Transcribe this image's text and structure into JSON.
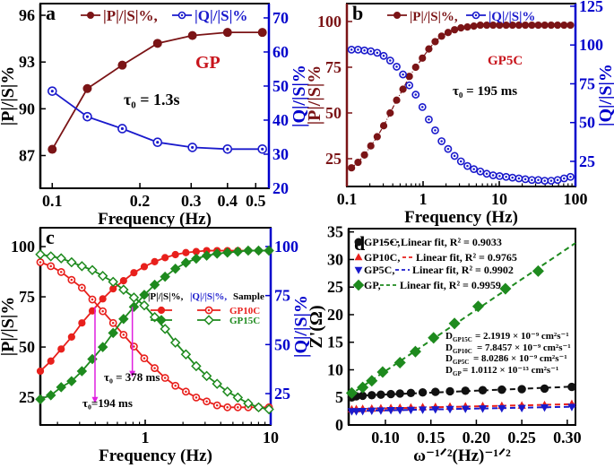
{
  "chart_data": [
    {
      "panel": "a",
      "type": "line",
      "xlabel": "Frequency (Hz)",
      "ylabel": "|P|/|S|%",
      "y2label": "|Q|/|S|%",
      "xscale": "log",
      "xlim": [
        0.091,
        0.555
      ],
      "ylim": [
        84.9,
        96.75
      ],
      "y2lim": [
        20,
        74.2
      ],
      "xticks": [
        "0.1",
        "0.2",
        "0.3",
        "0.4",
        "0.5"
      ],
      "yticks": [
        "87",
        "90",
        "93",
        "96"
      ],
      "y2ticks": [
        "20",
        "30",
        "40",
        "50",
        "60",
        "70"
      ],
      "colors": {
        "left_axis": "#000000",
        "right_axis": "#0000cc"
      },
      "legend": [
        "|P|/|S|%,",
        "|Q|/|S|%"
      ],
      "annotations": {
        "sample": "GP",
        "tau": "τ₀ = 1.3s"
      },
      "series": [
        {
          "name": "|P|/|S|%",
          "axis": "left",
          "color": "#7b1416",
          "marker": "circle",
          "line": "solid",
          "x": [
            0.1,
            0.132,
            0.174,
            0.23,
            0.303,
            0.4,
            0.527
          ],
          "y": [
            87.4,
            91.3,
            92.8,
            94.2,
            94.7,
            94.9,
            94.9
          ]
        },
        {
          "name": "|Q|/|S|%",
          "axis": "right",
          "color": "#1a1acc",
          "marker": "circle-open",
          "line": "solid",
          "x": [
            0.1,
            0.132,
            0.174,
            0.23,
            0.303,
            0.4,
            0.527
          ],
          "y": [
            48.5,
            41,
            37.5,
            33.5,
            32,
            31.5,
            31.5
          ]
        }
      ]
    },
    {
      "panel": "b",
      "type": "line",
      "xlabel": "Frequency (Hz)",
      "ylabel": "|P|/|S|%",
      "y2label": "|Q|/|S|%",
      "xscale": "log",
      "xlim": [
        0.1,
        100
      ],
      "ylim": [
        9.8,
        109.8
      ],
      "y2lim": [
        8.8,
        126.7
      ],
      "xticks": [
        "0.1",
        "1",
        "10",
        "100"
      ],
      "yticks": [
        "25",
        "50",
        "75",
        "100"
      ],
      "y2ticks": [
        "25",
        "50",
        "75",
        "100",
        "125"
      ],
      "colors": {
        "left_axis": "#7b1416",
        "right_axis": "#0000cc"
      },
      "legend": [
        "|P|/|S|%,",
        "|Q|/|S|%"
      ],
      "annotations": {
        "sample": "GP5C",
        "tau": "τ₀ = 195 ms"
      },
      "series": [
        {
          "name": "|P|/|S|%",
          "axis": "left",
          "color": "#7b1416",
          "marker": "circle",
          "line": "dashdot",
          "x": [
            0.115,
            0.14,
            0.17,
            0.206,
            0.25,
            0.304,
            0.37,
            0.45,
            0.545,
            0.66,
            0.8,
            0.98,
            1.19,
            1.44,
            1.75,
            2.13,
            2.59,
            3.14,
            3.82,
            4.64,
            5.64,
            6.85,
            8.3,
            10.1,
            12.3,
            14.9,
            18.1,
            22,
            26.8,
            32.5,
            39.5,
            48,
            58.3,
            70.9,
            86.1
          ],
          "y": [
            20,
            23,
            27,
            32,
            37,
            43,
            50,
            57,
            63,
            70,
            75,
            80,
            85,
            89,
            92,
            94,
            95.5,
            96.5,
            97,
            97.5,
            98,
            98,
            98,
            98,
            98,
            98,
            98,
            98,
            98,
            98,
            98,
            98,
            98,
            98,
            98
          ]
        },
        {
          "name": "|Q|/|S|%",
          "axis": "right",
          "color": "#1a1acc",
          "marker": "circle-open",
          "line": "none",
          "x": [
            0.115,
            0.14,
            0.17,
            0.206,
            0.25,
            0.304,
            0.37,
            0.45,
            0.545,
            0.66,
            0.8,
            0.98,
            1.19,
            1.44,
            1.75,
            2.13,
            2.59,
            3.14,
            3.82,
            4.64,
            5.64,
            6.85,
            8.3,
            10.1,
            12.3,
            14.9,
            18.1,
            22,
            26.8,
            32.5,
            39.5,
            48,
            58.3,
            70.9,
            86.1
          ],
          "y": [
            97,
            97,
            96.5,
            96,
            95,
            93,
            90,
            86,
            81,
            74,
            68,
            60,
            52,
            45,
            38,
            33,
            28.5,
            25,
            22,
            20,
            18.5,
            17,
            16,
            15.5,
            15,
            14.5,
            14,
            13.5,
            13,
            13,
            12.5,
            12.5,
            13,
            14,
            15
          ]
        }
      ]
    },
    {
      "panel": "c",
      "type": "line",
      "xlabel": "Frequency (Hz)",
      "ylabel": "|P|/|S|%",
      "y2label": "|Q|/|S|%",
      "xscale": "log",
      "xlim": [
        0.146,
        10
      ],
      "ylim": [
        11.2,
        109.4
      ],
      "y2lim": [
        9,
        109.6
      ],
      "xticks": [
        "1",
        "10"
      ],
      "yticks": [
        "25",
        "50",
        "75",
        "100"
      ],
      "y2ticks": [
        "25",
        "50",
        "75",
        "100"
      ],
      "colors": {
        "left_axis": "#000000",
        "right_axis": "#0000cc"
      },
      "legend": {
        "header": [
          "|P|/|S|%,",
          "|Q|/|S|%,",
          "Sample"
        ],
        "samples": [
          "GP10C",
          "GP15C"
        ]
      },
      "annotations": {
        "tau1": "τ₀ = 378 ms",
        "tau2": "τ₀=194 ms"
      },
      "arrows": [
        {
          "x": 0.398,
          "y_from": 70,
          "y_to": 22,
          "color": "#e020e0"
        },
        {
          "x": 0.79,
          "y_from": 70,
          "y_to": 35,
          "color": "#e020e0"
        }
      ],
      "series": [
        {
          "name": "GP10C |P|/|S|%",
          "axis": "left",
          "color": "#e8201c",
          "marker": "circle",
          "line": "solid",
          "x": [
            0.146,
            0.177,
            0.214,
            0.259,
            0.313,
            0.379,
            0.459,
            0.555,
            0.672,
            0.813,
            0.983,
            1.19,
            1.44,
            1.74,
            2.11,
            2.55,
            3.09,
            3.74,
            4.52,
            5.47,
            6.62,
            8.01,
            9.69
          ],
          "y": [
            38,
            43,
            49,
            55,
            62,
            68,
            74,
            79,
            83,
            87,
            90,
            92.5,
            94.5,
            96,
            97,
            97.5,
            98,
            98,
            98,
            98,
            98,
            98,
            98
          ]
        },
        {
          "name": "GP10C |Q|/|S|%",
          "axis": "right",
          "color": "#e8201c",
          "marker": "circle-open",
          "line": "solid",
          "x": [
            0.146,
            0.177,
            0.214,
            0.259,
            0.313,
            0.379,
            0.459,
            0.555,
            0.672,
            0.813,
            0.983,
            1.19,
            1.44,
            1.74,
            2.11,
            2.55,
            3.09,
            3.74,
            4.52,
            5.47,
            6.62,
            8.01,
            9.69
          ],
          "y": [
            92,
            90,
            87,
            83,
            79,
            73,
            67,
            61,
            55,
            49,
            43,
            38,
            33,
            29,
            26,
            23,
            21,
            19,
            18,
            18,
            18,
            18,
            18
          ]
        },
        {
          "name": "GP15C |P|/|S|%",
          "axis": "left",
          "color": "#1e8a1e",
          "marker": "diamond",
          "line": "solid",
          "x": [
            0.146,
            0.177,
            0.214,
            0.259,
            0.313,
            0.379,
            0.459,
            0.555,
            0.672,
            0.813,
            0.983,
            1.19,
            1.44,
            1.74,
            2.11,
            2.55,
            3.09,
            3.74,
            4.52,
            5.47,
            6.62,
            8.01,
            9.69
          ],
          "y": [
            24,
            26,
            30,
            33,
            38,
            44,
            50,
            57,
            64,
            70,
            76,
            81,
            85,
            89,
            92,
            94,
            95.5,
            96.5,
            97,
            97.5,
            98,
            98,
            98
          ]
        },
        {
          "name": "GP15C |Q|/|S|%",
          "axis": "right",
          "color": "#1e8a1e",
          "marker": "diamond-open",
          "line": "solid",
          "x": [
            0.146,
            0.177,
            0.214,
            0.259,
            0.313,
            0.379,
            0.459,
            0.555,
            0.672,
            0.813,
            0.983,
            1.19,
            1.44,
            1.74,
            2.11,
            2.55,
            3.09,
            3.74,
            4.52,
            5.47,
            6.62,
            8.01,
            9.69
          ],
          "y": [
            96,
            95,
            94,
            92,
            90,
            88,
            85,
            82,
            78,
            74,
            70,
            64,
            58,
            51,
            45,
            39,
            34,
            30,
            26,
            23,
            20,
            18,
            17
          ]
        }
      ]
    },
    {
      "panel": "d",
      "type": "scatter",
      "xlabel": "ω⁻¹ᐟ²(Hz)⁻¹ᐟ²",
      "ylabel": "Z'(Ω)",
      "xscale": "linear",
      "xlim": [
        0.0596,
        0.309
      ],
      "ylim": [
        0,
        35.6
      ],
      "xticks": [
        "0.10",
        "0.15",
        "0.20",
        "0.25",
        "0.30"
      ],
      "yticks": [
        "0",
        "5",
        "10",
        "15",
        "20",
        "25",
        "30",
        "35"
      ],
      "legend": [
        {
          "sample": "GP15C,",
          "fit": "Linear fit, R² = 0.9033"
        },
        {
          "sample": "GP10C,",
          "fit": "Linear fit, R² = 0.9765"
        },
        {
          "sample": "GP5C,",
          "fit": "Linear fit, R² = 0.9902"
        },
        {
          "sample": "GP,",
          "fit": "Linear fit, R² = 0.9959"
        }
      ],
      "diffusion": [
        {
          "sym": "D",
          "sub": "GP15C",
          "rest": "= 2.1919 × 10⁻⁹ cm²s⁻¹"
        },
        {
          "sym": "D",
          "sub": "GP10C",
          "rest": " = 7.8457 × 10⁻⁹ cm²s⁻¹"
        },
        {
          "sym": "D",
          "sub": "GP5C",
          "rest": "= 8.0286 × 10⁻⁹ cm²s⁻¹"
        },
        {
          "sym": "D",
          "sub": "GP",
          "rest": "= 1.0112 × 10⁻¹³ cm²s⁻¹"
        }
      ],
      "series": [
        {
          "name": "GP15C",
          "axis": "left",
          "color": "#111111",
          "marker": "circle",
          "line": "fit",
          "x": [
            0.063,
            0.068,
            0.075,
            0.085,
            0.095,
            0.106,
            0.116,
            0.128,
            0.141,
            0.155,
            0.171,
            0.188,
            0.207,
            0.228,
            0.25,
            0.275,
            0.305
          ],
          "y": [
            5,
            5.2,
            5.3,
            5.4,
            5.5,
            5.6,
            5.7,
            5.8,
            5.9,
            6,
            6.1,
            6.2,
            6.3,
            6.4,
            6.5,
            6.6,
            6.9
          ]
        },
        {
          "name": "GP10C",
          "axis": "left",
          "color": "#e8201c",
          "marker": "triangle-up",
          "line": "fit",
          "x": [
            0.063,
            0.068,
            0.075,
            0.085,
            0.095,
            0.106,
            0.116,
            0.128,
            0.141,
            0.155,
            0.171,
            0.188,
            0.207,
            0.228,
            0.25,
            0.275,
            0.305
          ],
          "y": [
            2.8,
            2.85,
            2.9,
            2.95,
            3,
            3.05,
            3.1,
            3.15,
            3.2,
            3.25,
            3.3,
            3.35,
            3.4,
            3.45,
            3.5,
            3.6,
            3.8
          ]
        },
        {
          "name": "GP5C",
          "axis": "left",
          "color": "#1a1acc",
          "marker": "triangle-down",
          "line": "fit",
          "x": [
            0.063,
            0.068,
            0.075,
            0.085,
            0.095,
            0.106,
            0.116,
            0.128,
            0.141,
            0.155,
            0.171,
            0.188,
            0.207,
            0.228,
            0.25,
            0.275,
            0.305
          ],
          "y": [
            2.5,
            2.5,
            2.55,
            2.6,
            2.65,
            2.7,
            2.7,
            2.75,
            2.8,
            2.85,
            2.9,
            2.95,
            3,
            3.05,
            3.1,
            3.2,
            3.3
          ]
        },
        {
          "name": "GP",
          "axis": "left",
          "color": "#1e8a1e",
          "marker": "diamond",
          "line": "fit",
          "x": [
            0.063,
            0.075,
            0.085,
            0.097,
            0.116,
            0.133,
            0.153,
            0.176,
            0.202,
            0.232,
            0.268
          ],
          "y": [
            5.8,
            6.8,
            8,
            9.6,
            11.3,
            13.3,
            15.8,
            18.4,
            21.5,
            24.7,
            27.9
          ]
        }
      ]
    }
  ]
}
